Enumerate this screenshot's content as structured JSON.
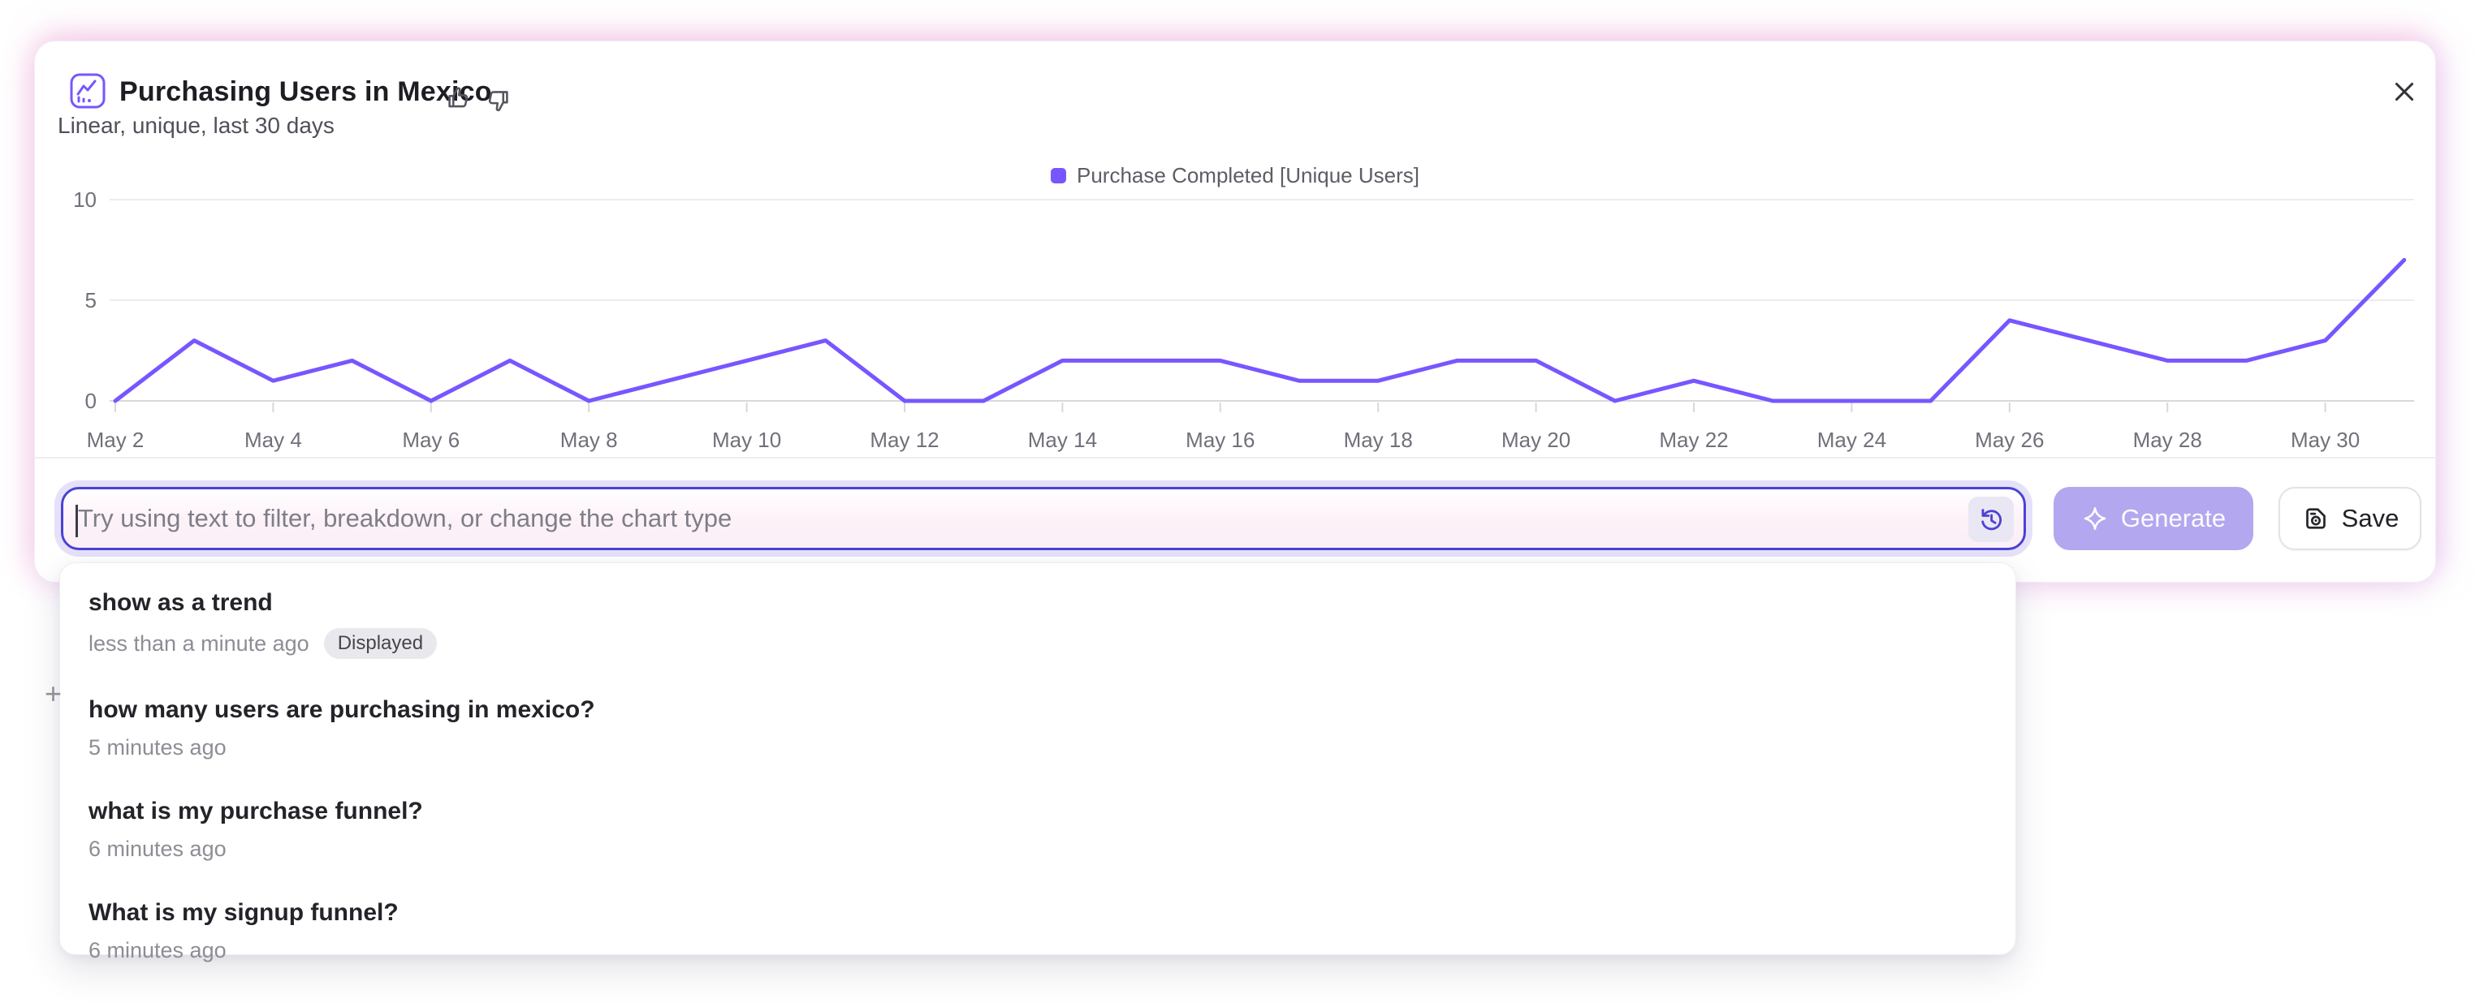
{
  "header": {
    "title": "Purchasing Users in Mexico",
    "subtitle": "Linear, unique, last 30 days"
  },
  "chart_data": {
    "type": "line",
    "title": "Purchasing Users in Mexico",
    "categories": [
      "May 2",
      "May 3",
      "May 4",
      "May 5",
      "May 6",
      "May 7",
      "May 8",
      "May 9",
      "May 10",
      "May 11",
      "May 12",
      "May 13",
      "May 14",
      "May 15",
      "May 16",
      "May 17",
      "May 18",
      "May 19",
      "May 20",
      "May 21",
      "May 22",
      "May 23",
      "May 24",
      "May 25",
      "May 26",
      "May 27",
      "May 28",
      "May 29",
      "May 30",
      "May 31"
    ],
    "series": [
      {
        "name": "Purchase Completed [Unique Users]",
        "color": "#7856ff",
        "values": [
          0,
          3,
          1,
          2,
          0,
          2,
          0,
          1,
          2,
          3,
          0,
          0,
          2,
          2,
          2,
          1,
          1,
          2,
          2,
          0,
          1,
          0,
          0,
          0,
          4,
          3,
          2,
          2,
          3,
          7
        ]
      }
    ],
    "ylim": [
      0,
      10
    ],
    "yticks": [
      0,
      5,
      10
    ],
    "x_tick_labels": [
      "May 2",
      "May 4",
      "May 6",
      "May 8",
      "May 10",
      "May 12",
      "May 14",
      "May 16",
      "May 18",
      "May 20",
      "May 22",
      "May 24",
      "May 26",
      "May 28",
      "May 30"
    ],
    "grid": true,
    "legend_position": "top-center"
  },
  "prompt_bar": {
    "placeholder": "Try using text to filter, breakdown, or change the chart type",
    "generate_label": "Generate",
    "save_label": "Save"
  },
  "history_dropdown": {
    "items": [
      {
        "query": "show as a trend",
        "time": "less than a minute ago",
        "badge": "Displayed"
      },
      {
        "query": "how many users are purchasing in mexico?",
        "time": "5 minutes ago"
      },
      {
        "query": "what is my purchase funnel?",
        "time": "6 minutes ago"
      },
      {
        "query": "What is my signup funnel?",
        "time": "6 minutes ago"
      }
    ]
  },
  "colors": {
    "accent": "#7856ff",
    "input_border": "#4b42d4",
    "generate_bg": "#b3a7ef",
    "badge_bg": "#e9e9ed",
    "grid_line": "#ececef",
    "axis_line": "#d8d8dd",
    "text_muted": "#70707a"
  },
  "misc": {
    "plus_glyph": "+"
  }
}
